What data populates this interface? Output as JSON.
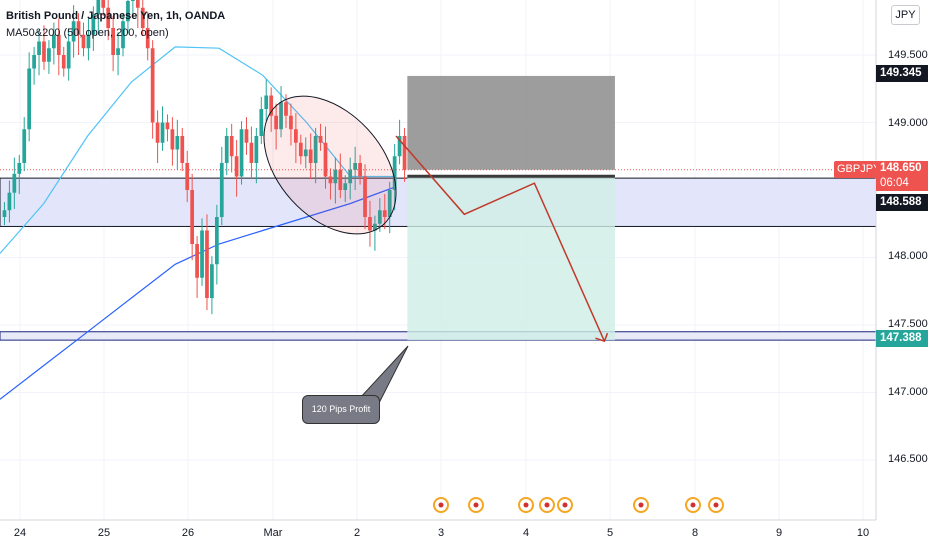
{
  "header": {
    "title": "British Pound / Japanese Yen, 1h, OANDA",
    "indicator": "MA50&200 (50, open, 200, open)"
  },
  "currency_button": "JPY",
  "price_axis": {
    "ticks": [
      "149.500",
      "149.000",
      "148.000",
      "147.500",
      "147.000",
      "146.500"
    ],
    "tags": {
      "top_box": "149.345",
      "symbol": "GBPJPY",
      "current": "148.650",
      "countdown": "06:04",
      "zone_top": "148.588",
      "target": "147.388"
    }
  },
  "time_axis": {
    "ticks": [
      "24",
      "25",
      "26",
      "Mar",
      "2",
      "3",
      "4",
      "5",
      "8",
      "9",
      "10"
    ]
  },
  "annotation": {
    "text": "120 Pips Profit"
  },
  "colors": {
    "up": "#26a69a",
    "down": "#ef5350",
    "ma50": "#4fc3f7",
    "ma200": "#2962ff",
    "zone": "#e3e6fb",
    "stop": "#8c8c8c",
    "profit": "#cfeee6",
    "path": "#c0392b"
  },
  "chart_data": {
    "type": "candlestick",
    "title": "British Pound / Japanese Yen, 1h, OANDA",
    "symbol": "GBPJPY",
    "x_ticks": [
      "24",
      "25",
      "26",
      "Mar",
      "2",
      "3",
      "4",
      "5",
      "8",
      "9",
      "10"
    ],
    "y_ticks": [
      149.5,
      149.0,
      148.0,
      147.5,
      147.0,
      146.5
    ],
    "ylim": [
      146.0,
      149.9
    ],
    "current_price": 148.65,
    "levels": {
      "resistance_top": 148.588,
      "resistance_bottom": 148.23,
      "support_top": 147.45,
      "target": 147.388,
      "short_box_top": 149.345
    },
    "ohlc_close": [
      148.35,
      148.48,
      148.62,
      148.7,
      148.95,
      149.4,
      149.5,
      149.6,
      149.45,
      149.55,
      149.65,
      149.5,
      149.4,
      149.6,
      149.75,
      149.65,
      149.55,
      149.65,
      149.8,
      149.95,
      149.85,
      149.7,
      149.5,
      149.55,
      149.75,
      149.9,
      149.95,
      149.85,
      149.7,
      149.55,
      149.0,
      148.85,
      149.0,
      148.95,
      148.8,
      148.9,
      148.7,
      148.5,
      148.1,
      147.85,
      148.2,
      147.7,
      147.95,
      148.3,
      148.7,
      148.9,
      148.75,
      148.6,
      148.95,
      148.85,
      148.7,
      148.9,
      149.1,
      149.2,
      149.05,
      148.95,
      149.15,
      149.05,
      148.95,
      148.85,
      148.75,
      148.8,
      148.7,
      148.9,
      148.85,
      148.6,
      148.55,
      148.65,
      148.5,
      148.55,
      148.65,
      148.7,
      148.6,
      148.3,
      148.2,
      148.25,
      148.35,
      148.3,
      148.5,
      148.75,
      148.9,
      148.65
    ],
    "series": [
      {
        "name": "MA50",
        "x_frac": [
          0.0,
          0.05,
          0.1,
          0.15,
          0.2,
          0.25,
          0.3,
          0.35,
          0.4,
          0.45
        ],
        "values": [
          148.03,
          148.4,
          148.9,
          149.3,
          149.56,
          149.55,
          149.35,
          149.0,
          148.6,
          148.6
        ]
      },
      {
        "name": "MA200",
        "x_frac": [
          0.0,
          0.05,
          0.1,
          0.15,
          0.2,
          0.25,
          0.3,
          0.35,
          0.4,
          0.45
        ],
        "values": [
          146.95,
          147.2,
          147.45,
          147.7,
          147.95,
          148.1,
          148.2,
          148.3,
          148.4,
          148.52
        ]
      }
    ],
    "trade_path": {
      "points": [
        [
          0.452,
          148.9
        ],
        [
          0.53,
          148.32
        ],
        [
          0.61,
          148.55
        ],
        [
          0.69,
          147.38
        ]
      ]
    },
    "annotation": "120 Pips Profit"
  }
}
